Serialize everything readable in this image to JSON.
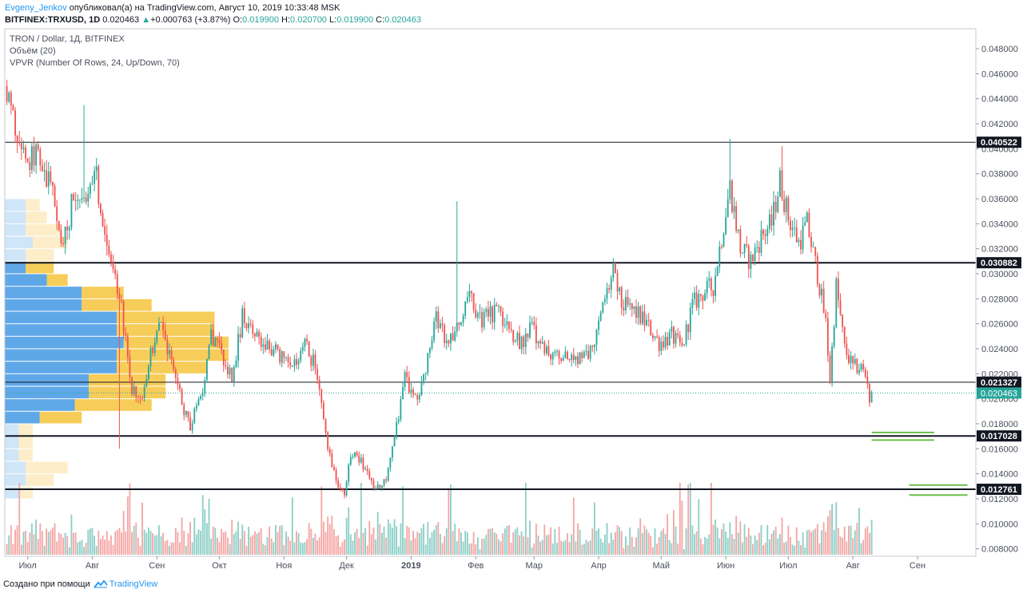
{
  "header": {
    "author": "Evgeny_Jenkov",
    "published": "опубликовал(а) на TradingView.com, Август 10, 2019 10:33:48 MSK",
    "symbol": "BITFINEX:TRXUSD, 1D",
    "last": "0.020463",
    "change": "+0.000763 (+3.87%)",
    "o_label": "O:",
    "o": "0.019900",
    "h_label": "H:",
    "h": "0.020700",
    "l_label": "L:",
    "l": "0.019900",
    "c_label": "C:",
    "c": "0.020463"
  },
  "legend": {
    "line1": "TRON / Dollar, 1Д, BITFINEX",
    "line2": "Объём (20)",
    "line3": "VPVR (Number Of Rows, 24, Up/Down, 70)"
  },
  "footer": {
    "created": "Создано при помощи",
    "brand": "TradingView"
  },
  "colors": {
    "up": "#26a69a",
    "down": "#ef5350",
    "vol_up": "#8ccfc7",
    "vol_down": "#f4a6a4",
    "vp_up": "#5fa8e8",
    "vp_down": "#f7cd5a",
    "vp_up_light": "#cfe5f8",
    "vp_down_light": "#fdeec9",
    "level": "#131722",
    "target": "#6cbf4a",
    "last_price": "#26a69a",
    "grid_border": "#c8cbd2"
  },
  "chart_data": {
    "type": "candlestick",
    "y_axis": {
      "ylim": [
        0.0074,
        0.0496
      ],
      "ticks": [
        "0.008000",
        "0.010000",
        "0.012000",
        "0.014000",
        "0.016000",
        "0.018000",
        "0.020000",
        "0.022000",
        "0.024000",
        "0.026000",
        "0.028000",
        "0.030000",
        "0.032000",
        "0.034000",
        "0.036000",
        "0.038000",
        "0.040000",
        "0.042000",
        "0.044000",
        "0.046000",
        "0.048000"
      ],
      "tick_values": [
        0.008,
        0.01,
        0.012,
        0.014,
        0.016,
        0.018,
        0.02,
        0.022,
        0.024,
        0.026,
        0.028,
        0.03,
        0.032,
        0.034,
        0.036,
        0.038,
        0.04,
        0.042,
        0.044,
        0.046,
        0.048
      ]
    },
    "x_axis": {
      "start": "2018-06-20",
      "end": "2019-09-29",
      "labels": [
        {
          "text": "Июл",
          "date": "2018-07-01"
        },
        {
          "text": "Авг",
          "date": "2018-08-01"
        },
        {
          "text": "Сен",
          "date": "2018-09-01"
        },
        {
          "text": "Окт",
          "date": "2018-10-01"
        },
        {
          "text": "Ноя",
          "date": "2018-11-01"
        },
        {
          "text": "Дек",
          "date": "2018-12-01"
        },
        {
          "text": "2019",
          "date": "2019-01-01",
          "bold": true
        },
        {
          "text": "Фев",
          "date": "2019-02-01"
        },
        {
          "text": "Мар",
          "date": "2019-03-01"
        },
        {
          "text": "Апр",
          "date": "2019-04-01"
        },
        {
          "text": "Май",
          "date": "2019-05-01"
        },
        {
          "text": "Июн",
          "date": "2019-06-01"
        },
        {
          "text": "Июл",
          "date": "2019-07-01"
        },
        {
          "text": "Авг",
          "date": "2019-08-01"
        },
        {
          "text": "Сен",
          "date": "2019-09-01"
        }
      ]
    },
    "price_path": [
      [
        "2018-06-21",
        0.045
      ],
      [
        "2018-06-25",
        0.0415
      ],
      [
        "2018-07-01",
        0.039
      ],
      [
        "2018-07-06",
        0.04
      ],
      [
        "2018-07-12",
        0.037
      ],
      [
        "2018-07-18",
        0.032
      ],
      [
        "2018-07-22",
        0.0355
      ],
      [
        "2018-07-28",
        0.0365
      ],
      [
        "2018-08-03",
        0.0375
      ],
      [
        "2018-08-07",
        0.033
      ],
      [
        "2018-08-12",
        0.03
      ],
      [
        "2018-08-15",
        0.027
      ],
      [
        "2018-08-20",
        0.021
      ],
      [
        "2018-08-24",
        0.0195
      ],
      [
        "2018-08-28",
        0.023
      ],
      [
        "2018-09-03",
        0.026
      ],
      [
        "2018-09-08",
        0.023
      ],
      [
        "2018-09-13",
        0.0195
      ],
      [
        "2018-09-17",
        0.018
      ],
      [
        "2018-09-22",
        0.02
      ],
      [
        "2018-09-27",
        0.025
      ],
      [
        "2018-10-02",
        0.0235
      ],
      [
        "2018-10-07",
        0.0215
      ],
      [
        "2018-10-12",
        0.0265
      ],
      [
        "2018-10-18",
        0.025
      ],
      [
        "2018-10-24",
        0.024
      ],
      [
        "2018-10-30",
        0.0235
      ],
      [
        "2018-11-06",
        0.0225
      ],
      [
        "2018-11-11",
        0.0245
      ],
      [
        "2018-11-16",
        0.0225
      ],
      [
        "2018-11-21",
        0.017
      ],
      [
        "2018-11-26",
        0.0135
      ],
      [
        "2018-11-30",
        0.0125
      ],
      [
        "2018-12-03",
        0.0155
      ],
      [
        "2018-12-08",
        0.015
      ],
      [
        "2018-12-14",
        0.013
      ],
      [
        "2018-12-20",
        0.0135
      ],
      [
        "2018-12-25",
        0.018
      ],
      [
        "2018-12-29",
        0.0215
      ],
      [
        "2019-01-04",
        0.02
      ],
      [
        "2019-01-09",
        0.023
      ],
      [
        "2019-01-13",
        0.0265
      ],
      [
        "2019-01-18",
        0.0245
      ],
      [
        "2019-01-24",
        0.026
      ],
      [
        "2019-01-29",
        0.028
      ],
      [
        "2019-02-04",
        0.0265
      ],
      [
        "2019-02-10",
        0.027
      ],
      [
        "2019-02-16",
        0.026
      ],
      [
        "2019-02-22",
        0.0245
      ],
      [
        "2019-02-28",
        0.0255
      ],
      [
        "2019-03-06",
        0.024
      ],
      [
        "2019-03-12",
        0.0232
      ],
      [
        "2019-03-18",
        0.0235
      ],
      [
        "2019-03-24",
        0.023
      ],
      [
        "2019-03-30",
        0.0245
      ],
      [
        "2019-04-04",
        0.028
      ],
      [
        "2019-04-08",
        0.03
      ],
      [
        "2019-04-12",
        0.0275
      ],
      [
        "2019-04-18",
        0.027
      ],
      [
        "2019-04-24",
        0.026
      ],
      [
        "2019-04-30",
        0.0245
      ],
      [
        "2019-05-06",
        0.025
      ],
      [
        "2019-05-11",
        0.024
      ],
      [
        "2019-05-16",
        0.0275
      ],
      [
        "2019-05-21",
        0.0285
      ],
      [
        "2019-05-26",
        0.029
      ],
      [
        "2019-05-30",
        0.033
      ],
      [
        "2019-06-03",
        0.037
      ],
      [
        "2019-06-08",
        0.032
      ],
      [
        "2019-06-13",
        0.031
      ],
      [
        "2019-06-18",
        0.033
      ],
      [
        "2019-06-23",
        0.034
      ],
      [
        "2019-06-27",
        0.0375
      ],
      [
        "2019-07-01",
        0.0345
      ],
      [
        "2019-07-06",
        0.0325
      ],
      [
        "2019-07-10",
        0.034
      ],
      [
        "2019-07-15",
        0.03
      ],
      [
        "2019-07-19",
        0.026
      ],
      [
        "2019-07-21",
        0.0215
      ],
      [
        "2019-07-24",
        0.029
      ],
      [
        "2019-07-28",
        0.024
      ],
      [
        "2019-08-01",
        0.0225
      ],
      [
        "2019-08-05",
        0.0225
      ],
      [
        "2019-08-08",
        0.0215
      ],
      [
        "2019-08-09",
        0.0199
      ],
      [
        "2019-08-10",
        0.0205
      ]
    ],
    "spikes": [
      {
        "date": "2018-07-28",
        "high": 0.0435
      },
      {
        "date": "2018-08-14",
        "low": 0.016
      },
      {
        "date": "2019-01-23",
        "high": 0.0358
      },
      {
        "date": "2019-06-03",
        "high": 0.0408
      },
      {
        "date": "2019-06-28",
        "high": 0.0402
      }
    ],
    "horizontal_levels": [
      {
        "value": 0.040522,
        "label": "0.040522",
        "weight": 1
      },
      {
        "value": 0.030882,
        "label": "0.030882",
        "weight": 2
      },
      {
        "value": 0.021327,
        "label": "0.021327",
        "weight": 1
      },
      {
        "value": 0.017028,
        "label": "0.017028",
        "weight": 2
      },
      {
        "value": 0.012761,
        "label": "0.012761",
        "weight": 2
      }
    ],
    "last_price": {
      "value": 0.020463,
      "label": "0.020463"
    },
    "target_zones": [
      {
        "from": "2019-08-10",
        "to": "2019-09-09",
        "values": [
          0.0173,
          0.0167
        ]
      },
      {
        "from": "2019-08-28",
        "to": "2019-09-25",
        "values": [
          0.0131,
          0.0123
        ]
      }
    ],
    "volume_profile": {
      "rows": [
        {
          "low": 0.012,
          "high": 0.013,
          "up": 0.001,
          "down": 0.001
        },
        {
          "low": 0.013,
          "high": 0.014,
          "up": 0.0015,
          "down": 0.002
        },
        {
          "low": 0.014,
          "high": 0.015,
          "up": 0.0015,
          "down": 0.003
        },
        {
          "low": 0.015,
          "high": 0.016,
          "up": 0.001,
          "down": 0.001
        },
        {
          "low": 0.016,
          "high": 0.017,
          "up": 0.001,
          "down": 0.001
        },
        {
          "low": 0.017,
          "high": 0.018,
          "up": 0.001,
          "down": 0.001
        },
        {
          "low": 0.018,
          "high": 0.019,
          "up": 0.0025,
          "down": 0.003
        },
        {
          "low": 0.019,
          "high": 0.02,
          "up": 0.005,
          "down": 0.0055
        },
        {
          "low": 0.02,
          "high": 0.021,
          "up": 0.006,
          "down": 0.0055
        },
        {
          "low": 0.021,
          "high": 0.022,
          "up": 0.006,
          "down": 0.0055
        },
        {
          "low": 0.022,
          "high": 0.023,
          "up": 0.008,
          "down": 0.0065
        },
        {
          "low": 0.023,
          "high": 0.024,
          "up": 0.008,
          "down": 0.008
        },
        {
          "low": 0.024,
          "high": 0.025,
          "up": 0.0085,
          "down": 0.0075
        },
        {
          "low": 0.025,
          "high": 0.026,
          "up": 0.008,
          "down": 0.007
        },
        {
          "low": 0.026,
          "high": 0.027,
          "up": 0.008,
          "down": 0.007
        },
        {
          "low": 0.027,
          "high": 0.028,
          "up": 0.0055,
          "down": 0.005
        },
        {
          "low": 0.028,
          "high": 0.029,
          "up": 0.0055,
          "down": 0.003
        },
        {
          "low": 0.029,
          "high": 0.03,
          "up": 0.003,
          "down": 0.0015
        },
        {
          "low": 0.03,
          "high": 0.031,
          "up": 0.0015,
          "down": 0.002
        },
        {
          "low": 0.031,
          "high": 0.032,
          "up": 0.0015,
          "down": 0.002
        },
        {
          "low": 0.032,
          "high": 0.033,
          "up": 0.002,
          "down": 0.0025
        },
        {
          "low": 0.033,
          "high": 0.034,
          "up": 0.0015,
          "down": 0.0025
        },
        {
          "low": 0.034,
          "high": 0.035,
          "up": 0.0015,
          "down": 0.0015
        },
        {
          "low": 0.035,
          "high": 0.036,
          "up": 0.0015,
          "down": 0.001
        }
      ],
      "max_total": 0.016,
      "value_area": {
        "low": 0.018,
        "high": 0.031
      }
    }
  }
}
